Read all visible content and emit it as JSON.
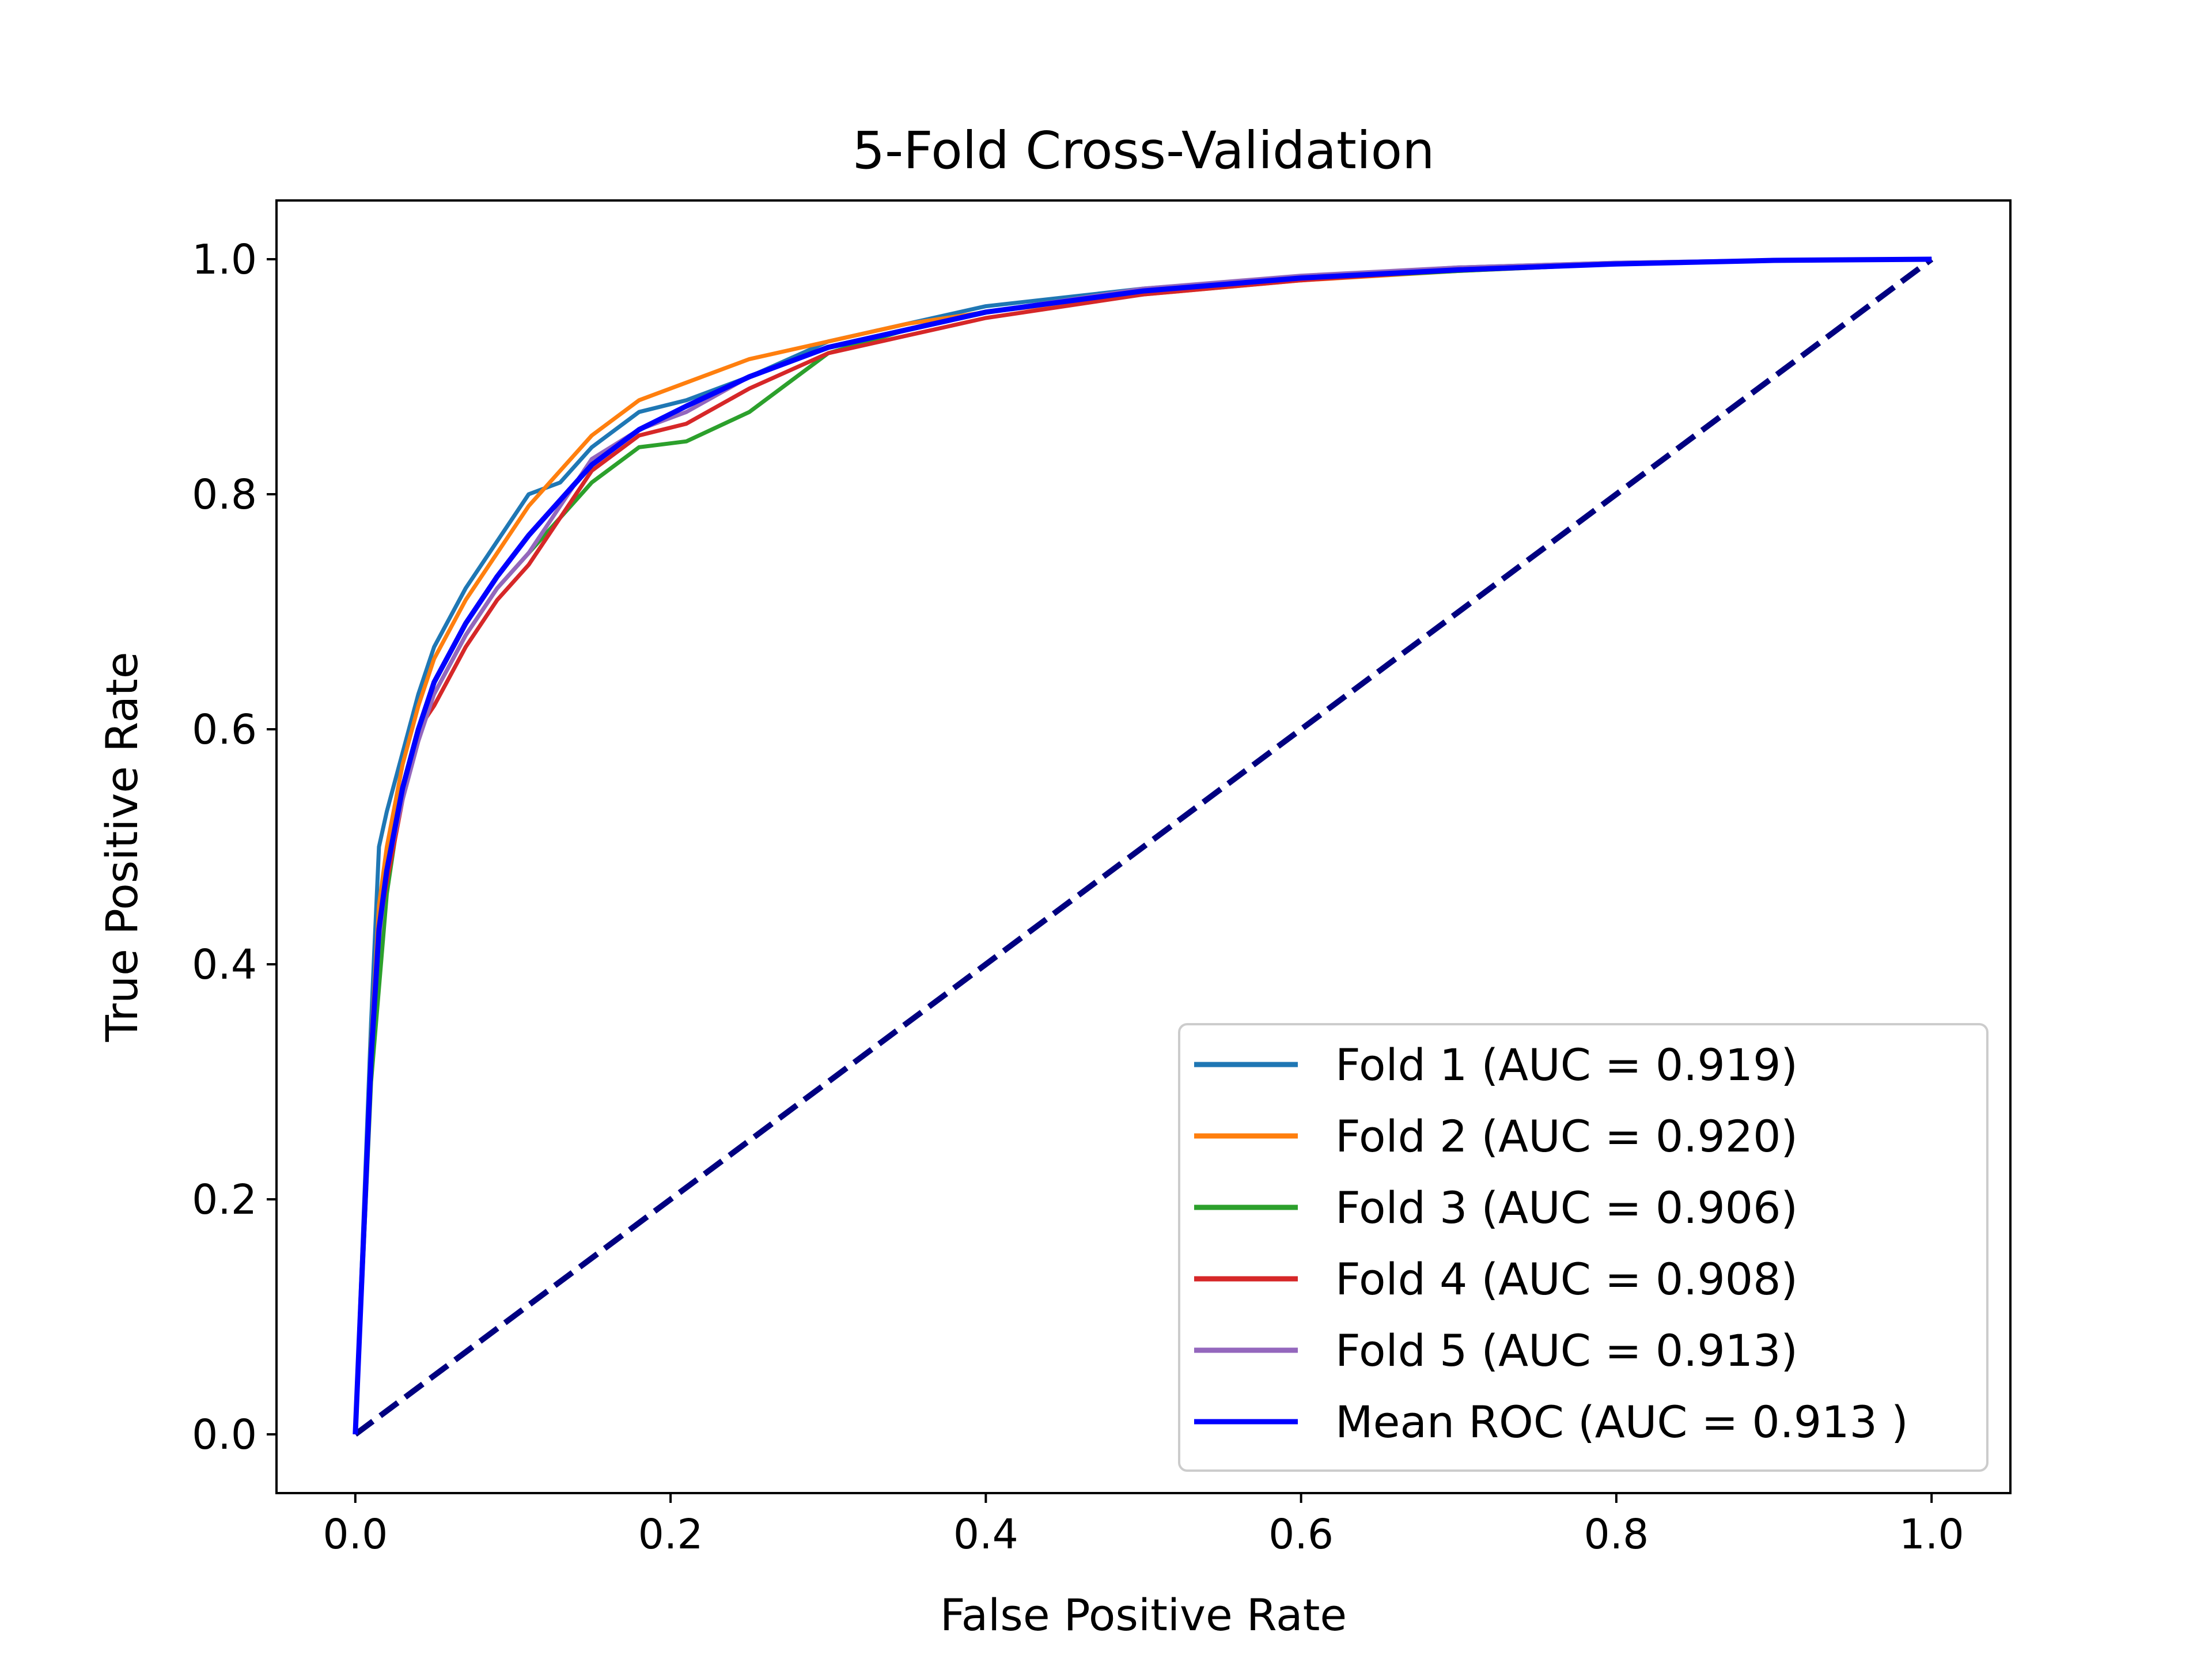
{
  "chart_data": {
    "type": "line",
    "title": "5-Fold Cross-Validation",
    "xlabel": "False Positive Rate",
    "ylabel": "True Positive Rate",
    "xlim": [
      -0.05,
      1.05
    ],
    "ylim": [
      -0.05,
      1.05
    ],
    "xticks": [
      "0.0",
      "0.2",
      "0.4",
      "0.6",
      "0.8",
      "1.0"
    ],
    "yticks": [
      "0.0",
      "0.2",
      "0.4",
      "0.6",
      "0.8",
      "1.0"
    ],
    "grid": false,
    "legend_position": "lower-right",
    "series": [
      {
        "name": "Fold 1 (AUC = 0.919)",
        "color": "#1f77b4",
        "x": [
          0.0,
          0.01,
          0.015,
          0.02,
          0.03,
          0.04,
          0.05,
          0.07,
          0.09,
          0.11,
          0.13,
          0.15,
          0.18,
          0.21,
          0.25,
          0.3,
          0.35,
          0.4,
          0.5,
          0.6,
          0.7,
          0.8,
          0.9,
          1.0
        ],
        "y": [
          0.0,
          0.35,
          0.5,
          0.53,
          0.58,
          0.63,
          0.67,
          0.72,
          0.76,
          0.8,
          0.81,
          0.84,
          0.87,
          0.88,
          0.9,
          0.93,
          0.945,
          0.96,
          0.975,
          0.985,
          0.993,
          0.997,
          0.999,
          1.0
        ]
      },
      {
        "name": "Fold 2 (AUC = 0.920)",
        "color": "#ff7f0e",
        "x": [
          0.0,
          0.01,
          0.015,
          0.02,
          0.03,
          0.04,
          0.05,
          0.07,
          0.09,
          0.11,
          0.13,
          0.15,
          0.18,
          0.21,
          0.25,
          0.3,
          0.35,
          0.4,
          0.5,
          0.6,
          0.7,
          0.8,
          0.9,
          1.0
        ],
        "y": [
          0.0,
          0.33,
          0.45,
          0.5,
          0.57,
          0.62,
          0.66,
          0.71,
          0.75,
          0.79,
          0.82,
          0.85,
          0.88,
          0.895,
          0.915,
          0.93,
          0.945,
          0.955,
          0.97,
          0.982,
          0.99,
          0.996,
          0.999,
          1.0
        ]
      },
      {
        "name": "Fold 3 (AUC = 0.906)",
        "color": "#2ca02c",
        "x": [
          0.0,
          0.01,
          0.015,
          0.02,
          0.03,
          0.04,
          0.05,
          0.07,
          0.09,
          0.11,
          0.13,
          0.15,
          0.18,
          0.21,
          0.25,
          0.3,
          0.35,
          0.4,
          0.5,
          0.6,
          0.7,
          0.8,
          0.9,
          1.0
        ],
        "y": [
          0.0,
          0.3,
          0.38,
          0.46,
          0.55,
          0.6,
          0.63,
          0.68,
          0.72,
          0.75,
          0.78,
          0.81,
          0.84,
          0.845,
          0.87,
          0.92,
          0.94,
          0.955,
          0.972,
          0.983,
          0.99,
          0.996,
          0.999,
          1.0
        ]
      },
      {
        "name": "Fold 4 (AUC = 0.908)",
        "color": "#d62728",
        "x": [
          0.0,
          0.01,
          0.015,
          0.02,
          0.03,
          0.04,
          0.05,
          0.07,
          0.09,
          0.11,
          0.13,
          0.15,
          0.18,
          0.21,
          0.25,
          0.3,
          0.35,
          0.4,
          0.5,
          0.6,
          0.7,
          0.8,
          0.9,
          1.0
        ],
        "y": [
          0.0,
          0.33,
          0.43,
          0.47,
          0.54,
          0.6,
          0.62,
          0.67,
          0.71,
          0.74,
          0.78,
          0.82,
          0.85,
          0.86,
          0.89,
          0.92,
          0.935,
          0.95,
          0.97,
          0.982,
          0.991,
          0.996,
          0.999,
          1.0
        ]
      },
      {
        "name": "Fold 5 (AUC = 0.913)",
        "color": "#9467bd",
        "x": [
          0.0,
          0.01,
          0.015,
          0.02,
          0.03,
          0.04,
          0.05,
          0.07,
          0.09,
          0.11,
          0.13,
          0.15,
          0.18,
          0.21,
          0.25,
          0.3,
          0.35,
          0.4,
          0.5,
          0.6,
          0.7,
          0.8,
          0.9,
          1.0
        ],
        "y": [
          0.0,
          0.32,
          0.42,
          0.48,
          0.54,
          0.59,
          0.63,
          0.68,
          0.72,
          0.75,
          0.79,
          0.83,
          0.855,
          0.87,
          0.9,
          0.925,
          0.94,
          0.955,
          0.975,
          0.986,
          0.993,
          0.997,
          0.999,
          1.0
        ]
      },
      {
        "name": "Mean ROC (AUC = 0.913 )",
        "color": "#0000ff",
        "x": [
          0.0,
          0.01,
          0.015,
          0.02,
          0.03,
          0.04,
          0.05,
          0.07,
          0.09,
          0.11,
          0.13,
          0.15,
          0.18,
          0.21,
          0.25,
          0.3,
          0.35,
          0.4,
          0.5,
          0.6,
          0.7,
          0.8,
          0.9,
          1.0
        ],
        "y": [
          0.0,
          0.32,
          0.43,
          0.48,
          0.55,
          0.6,
          0.64,
          0.69,
          0.73,
          0.765,
          0.795,
          0.825,
          0.855,
          0.875,
          0.9,
          0.925,
          0.94,
          0.955,
          0.973,
          0.984,
          0.991,
          0.996,
          0.999,
          1.0
        ]
      }
    ],
    "reference_line": {
      "x": [
        0.0,
        1.0
      ],
      "y": [
        0.0,
        1.0
      ],
      "color": "#000080",
      "style": "dashed"
    }
  }
}
